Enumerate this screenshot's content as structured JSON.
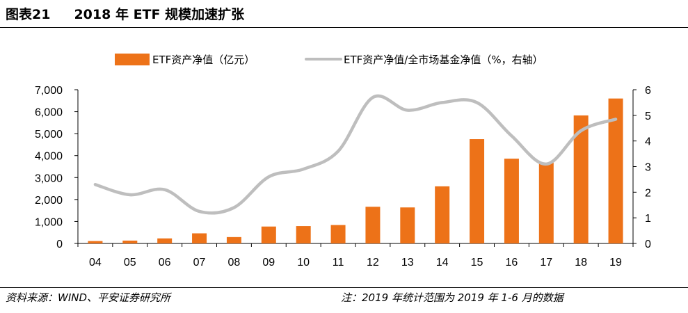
{
  "header": {
    "figure_number": "图表21",
    "title": "2018 年 ETF 规模加速扩张"
  },
  "footer": {
    "source": "资料来源：WIND、平安证券研究所",
    "note": "注：2019 年统计范围为 2019 年 1-6 月的数据"
  },
  "colors": {
    "bar": "#ED7218",
    "line": "#BEBEBE",
    "axis": "#000000"
  },
  "chart_data": {
    "type": "bar",
    "categories": [
      "04",
      "05",
      "06",
      "07",
      "08",
      "09",
      "10",
      "11",
      "12",
      "13",
      "14",
      "15",
      "16",
      "17",
      "18",
      "19"
    ],
    "legend_placement": "top",
    "grid": false,
    "series": [
      {
        "name": "ETF资产净值（亿元）",
        "type": "bar",
        "axis": "left",
        "values": [
          110,
          130,
          230,
          460,
          290,
          770,
          790,
          840,
          1670,
          1640,
          2600,
          4750,
          3860,
          3680,
          5830,
          6600
        ]
      },
      {
        "name": "ETF资产净值/全市场基金净值（%，右轴）",
        "type": "line",
        "axis": "right",
        "values": [
          2.3,
          1.9,
          2.1,
          1.25,
          1.4,
          2.6,
          2.9,
          3.6,
          5.7,
          5.2,
          5.5,
          5.5,
          4.2,
          3.1,
          4.4,
          4.85
        ]
      }
    ],
    "y_left": {
      "min": 0,
      "max": 7000,
      "ticks": [
        "0",
        "1,000",
        "2,000",
        "3,000",
        "4,000",
        "5,000",
        "6,000",
        "7,000"
      ]
    },
    "y_right": {
      "min": 0,
      "max": 6,
      "ticks": [
        "0",
        "1",
        "2",
        "3",
        "4",
        "5",
        "6"
      ]
    }
  }
}
